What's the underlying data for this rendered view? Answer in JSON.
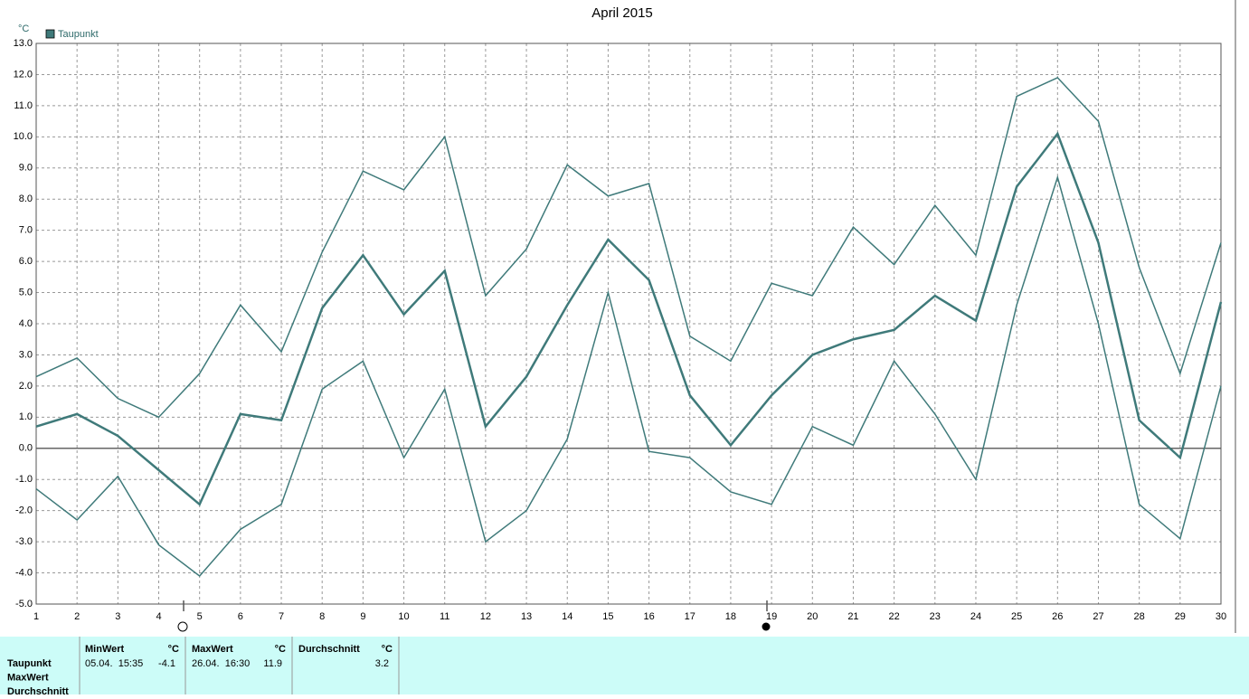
{
  "chart_data": {
    "type": "line",
    "title": "April 2015",
    "y_unit": "°C",
    "x": [
      1,
      2,
      3,
      4,
      5,
      6,
      7,
      8,
      9,
      10,
      11,
      12,
      13,
      14,
      15,
      16,
      17,
      18,
      19,
      20,
      21,
      22,
      23,
      24,
      25,
      26,
      27,
      28,
      29,
      30
    ],
    "series": [
      {
        "name": "Taupunkt",
        "color": "#3f7a7a",
        "width": 2.5,
        "values": [
          0.7,
          1.1,
          0.4,
          -0.7,
          -1.8,
          1.1,
          0.9,
          4.5,
          6.2,
          4.3,
          5.7,
          0.7,
          2.3,
          4.6,
          6.7,
          5.4,
          1.7,
          0.1,
          1.7,
          3.0,
          3.5,
          3.8,
          4.9,
          4.1,
          8.4,
          10.1,
          6.6,
          0.9,
          -0.3,
          4.7
        ]
      },
      {
        "color": "#3f7a7a",
        "width": 1.5,
        "values": [
          2.3,
          2.9,
          1.6,
          1.0,
          2.4,
          4.6,
          3.1,
          6.3,
          8.9,
          8.3,
          10.0,
          4.9,
          6.4,
          9.1,
          8.1,
          8.5,
          3.6,
          2.8,
          5.3,
          4.9,
          7.1,
          5.9,
          7.8,
          6.2,
          11.3,
          11.9,
          10.5,
          5.8,
          2.4,
          6.6
        ]
      },
      {
        "color": "#3f7a7a",
        "width": 1.5,
        "values": [
          -1.3,
          -2.3,
          -0.9,
          -3.1,
          -4.1,
          -2.6,
          -1.8,
          1.9,
          2.8,
          -0.3,
          1.9,
          -3.0,
          -2.0,
          0.3,
          5.0,
          -0.1,
          -0.3,
          -1.4,
          -1.8,
          0.7,
          0.1,
          2.8,
          1.1,
          -1.0,
          4.6,
          8.7,
          4.0,
          -1.8,
          -2.9,
          2.0
        ]
      }
    ],
    "xlim": [
      1,
      30
    ],
    "xticks": [
      1,
      2,
      3,
      4,
      5,
      6,
      7,
      8,
      9,
      10,
      11,
      12,
      13,
      14,
      15,
      16,
      17,
      18,
      19,
      20,
      21,
      22,
      23,
      24,
      25,
      26,
      27,
      28,
      29,
      30
    ],
    "ylim": [
      -5,
      13
    ],
    "yticks": [
      {
        "value": -5,
        "label": "-5.0"
      },
      {
        "value": -4,
        "label": "-4.0"
      },
      {
        "value": -3,
        "label": "-3.0"
      },
      {
        "value": -2,
        "label": "-2.0"
      },
      {
        "value": -1,
        "label": "-1.0"
      },
      {
        "value": 0,
        "label": "0.0"
      },
      {
        "value": 1,
        "label": "1.0"
      },
      {
        "value": 2,
        "label": "2.0"
      },
      {
        "value": 3,
        "label": "3.0"
      },
      {
        "value": 4,
        "label": "4.0"
      },
      {
        "value": 5,
        "label": "5.0"
      },
      {
        "value": 6,
        "label": "6.0"
      },
      {
        "value": 7,
        "label": "7.0"
      },
      {
        "value": 8,
        "label": "8.0"
      },
      {
        "value": 9,
        "label": "9.0"
      },
      {
        "value": 10,
        "label": "10.0"
      },
      {
        "value": 11,
        "label": "11.0"
      },
      {
        "value": 12,
        "label": "12.0"
      },
      {
        "value": 13,
        "label": "13.0"
      }
    ],
    "grid": true
  },
  "table": {
    "row_labels": [
      "Taupunkt",
      "MaxWert",
      "Durchschnitt"
    ],
    "columns": [
      {
        "title": "MinWert",
        "unit": "°C",
        "time": "05.04.  15:35",
        "value": -4.1
      },
      {
        "title": "MaxWert",
        "unit": "°C",
        "time": "26.04.  16:30",
        "value": 11.9
      },
      {
        "title": "Durchschnitt",
        "unit": "°C",
        "value": 3.2
      }
    ]
  }
}
